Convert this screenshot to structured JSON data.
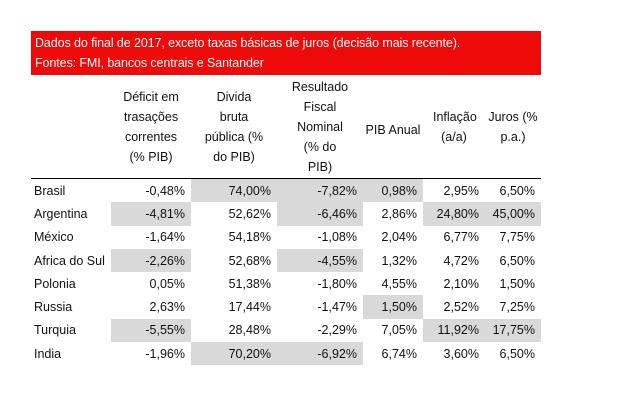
{
  "header": {
    "line1": "Dados do final de 2017, exceto taxas básicas de juros (decisão mais recente).",
    "line2": "Fontes: FMI, bancos centrais e Santander"
  },
  "columns": [
    "Déficit em trasações correntes (% PIB)",
    "Divida bruta pública (% do PIB)",
    "Resultado Fiscal Nominal (% do PIB)",
    "PIB Anual",
    "Inflação (a/a)",
    "Juros (% p.a.)"
  ],
  "rows": [
    {
      "country": "Brasil",
      "cells": [
        "-0,48%",
        "74,00%",
        "-7,82%",
        "0,98%",
        "2,95%",
        "6,50%"
      ],
      "hl": [
        false,
        true,
        true,
        true,
        false,
        false
      ]
    },
    {
      "country": "Argentina",
      "cells": [
        "-4,81%",
        "52,62%",
        "-6,46%",
        "2,86%",
        "24,80%",
        "45,00%"
      ],
      "hl": [
        true,
        false,
        true,
        false,
        true,
        true
      ]
    },
    {
      "country": "México",
      "cells": [
        "-1,64%",
        "54,18%",
        "-1,08%",
        "2,04%",
        "6,77%",
        "7,75%"
      ],
      "hl": [
        false,
        false,
        false,
        false,
        false,
        false
      ]
    },
    {
      "country": "Africa do Sul",
      "cells": [
        "-2,26%",
        "52,68%",
        "-4,55%",
        "1,32%",
        "4,72%",
        "6,50%"
      ],
      "hl": [
        true,
        false,
        true,
        false,
        false,
        false
      ]
    },
    {
      "country": "Polonia",
      "cells": [
        "0,05%",
        "51,38%",
        "-1,80%",
        "4,55%",
        "2,10%",
        "1,50%"
      ],
      "hl": [
        false,
        false,
        false,
        false,
        false,
        false
      ]
    },
    {
      "country": "Russia",
      "cells": [
        "2,63%",
        "17,44%",
        "-1,47%",
        "1,50%",
        "2,52%",
        "7,25%"
      ],
      "hl": [
        false,
        false,
        false,
        true,
        false,
        false
      ]
    },
    {
      "country": "Turquia",
      "cells": [
        "-5,55%",
        "28,48%",
        "-2,29%",
        "7,05%",
        "11,92%",
        "17,75%"
      ],
      "hl": [
        true,
        false,
        false,
        false,
        true,
        true
      ]
    },
    {
      "country": "India",
      "cells": [
        "-1,96%",
        "70,20%",
        "-6,92%",
        "6,74%",
        "3,60%",
        "6,50%"
      ],
      "hl": [
        false,
        true,
        true,
        false,
        false,
        false
      ]
    }
  ]
}
